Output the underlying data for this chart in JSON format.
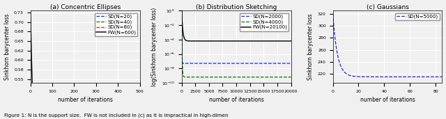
{
  "fig_width": 6.4,
  "fig_height": 1.71,
  "dpi": 100,
  "caption": "Figure 1: N is the support size.  FW is not included in (c) as it is impractical in high-dimen",
  "panel_a": {
    "title": "(a) Concentric Ellipses",
    "xlabel": "number of iterations",
    "ylabel": "Sinkhorn barycenter loss",
    "xlim": [
      0,
      500
    ],
    "ylim": [
      0.54,
      0.73
    ],
    "xticks": [
      0,
      100,
      200,
      300,
      400,
      500
    ],
    "lines": [
      {
        "label": "SD(N=20)",
        "color": "#2222dd",
        "linestyle": "--",
        "lw": 0.9,
        "init": 0.057,
        "converge": 0.0545,
        "decay": 3.0
      },
      {
        "label": "SD(N=40)",
        "color": "#007700",
        "linestyle": "--",
        "lw": 0.9,
        "init": 0.056,
        "converge": 0.054,
        "decay": 2.0
      },
      {
        "label": "SD(N=80)",
        "color": "#cc2222",
        "linestyle": "--",
        "lw": 0.9,
        "init": 0.056,
        "converge": 0.054,
        "decay": 2.0
      },
      {
        "label": "FW(N=600)",
        "color": "#111111",
        "linestyle": "-",
        "lw": 1.1,
        "init": 0.72,
        "converge": 0.0555,
        "decay": 25.0
      }
    ]
  },
  "panel_b": {
    "title": "(b) Distribution Sketching",
    "xlabel": "number of iterations",
    "ylabel": "log(Sinkhorn barycenter loss)",
    "xlim": [
      0,
      20000
    ],
    "xticks": [
      0,
      2500,
      5000,
      7500,
      10000,
      12500,
      15000,
      17500,
      20000
    ],
    "lines": [
      {
        "label": "SD(N=2000)",
        "color": "#2222dd",
        "linestyle": "--",
        "lw": 0.9,
        "flat_val": -7.3,
        "drop_speed": 30
      },
      {
        "label": "SD(N=4000)",
        "color": "#007700",
        "linestyle": "--",
        "lw": 0.9,
        "flat_val": -9.2,
        "drop_speed": 80
      },
      {
        "label": "FW(N=20100)",
        "color": "#111111",
        "linestyle": "-",
        "lw": 1.1,
        "flat_val": -4.2,
        "drop_speed": 200
      }
    ]
  },
  "panel_c": {
    "title": "(c) Gaussians",
    "xlabel": "number of iterations",
    "ylabel": "Sinkhorn barycenter loss",
    "xlim": [
      0,
      85
    ],
    "ylim": [
      205,
      325
    ],
    "xticks": [
      0,
      20,
      40,
      60,
      80
    ],
    "yticks": [
      220,
      240,
      260,
      280,
      300,
      320
    ],
    "lines": [
      {
        "label": "SD(N=5000)",
        "color": "#2222dd",
        "linestyle": "--",
        "lw": 0.9,
        "init": 320,
        "converge": 215,
        "decay": 3.5
      }
    ]
  },
  "background_color": "#f0f0f0",
  "grid_color": "#ffffff",
  "legend_fontsize": 5.0,
  "axis_fontsize": 5.5,
  "title_fontsize": 6.5,
  "tick_fontsize": 4.5
}
